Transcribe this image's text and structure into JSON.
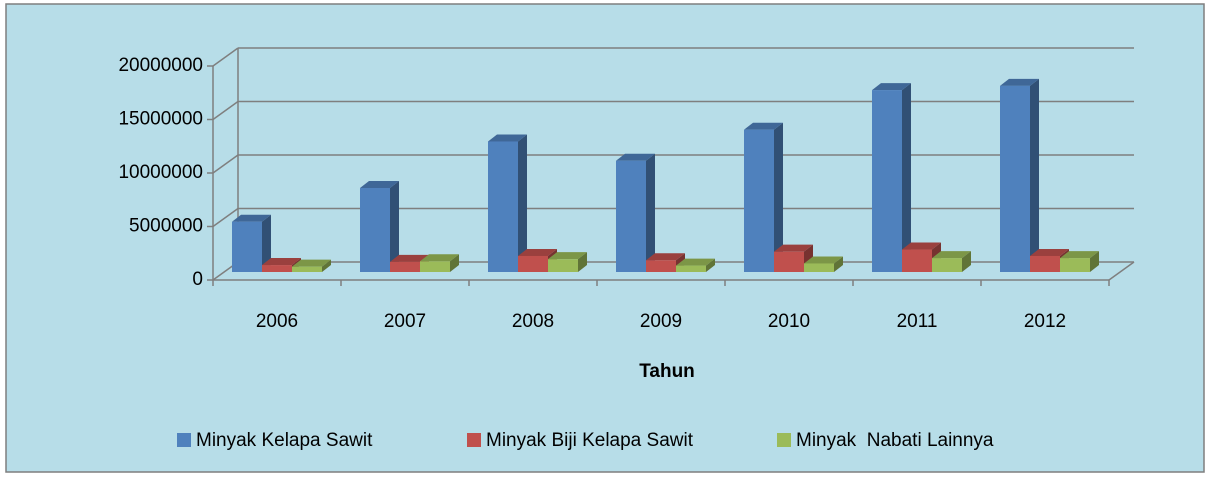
{
  "chart_data": {
    "type": "bar3d",
    "x_label": "Tahun",
    "categories": [
      "2006",
      "2007",
      "2008",
      "2009",
      "2010",
      "2011",
      "2012"
    ],
    "series": [
      {
        "name": "Minyak Kelapa Sawit",
        "color": "#4f81bd",
        "values": [
          4700000,
          7850000,
          12200000,
          10400000,
          13300000,
          17000000,
          17400000
        ]
      },
      {
        "name": "Minyak Biji Kelapa Sawit",
        "color": "#c0504d",
        "values": [
          650000,
          950000,
          1500000,
          1100000,
          1900000,
          2100000,
          1500000
        ]
      },
      {
        "name": "Minyak  Nabati Lainnya",
        "color": "#9bbb59",
        "values": [
          500000,
          1000000,
          1200000,
          600000,
          800000,
          1300000,
          1300000
        ]
      }
    ],
    "ylim": [
      0,
      20000000
    ],
    "yticks": [
      0,
      5000000,
      10000000,
      15000000,
      20000000
    ],
    "grid": true
  }
}
